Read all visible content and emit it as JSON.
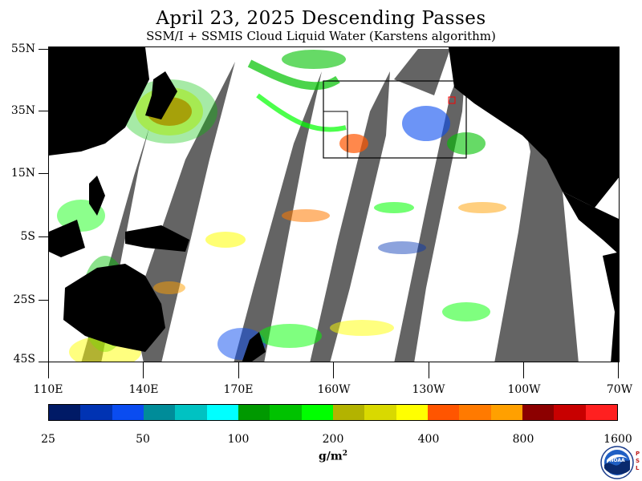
{
  "title": "April 23, 2025  Descending Passes",
  "subtitle": "SSM/I + SSMIS Cloud Liquid Water (Karstens algorithm)",
  "lat_labels": [
    "55N",
    "35N",
    "15N",
    "5S",
    "25S",
    "45S"
  ],
  "lon_labels": [
    "110E",
    "140E",
    "170E",
    "160W",
    "130W",
    "100W",
    "70W"
  ],
  "colorbar": {
    "unit": "g/m",
    "unit_sup": "2",
    "labels": [
      "25",
      "50",
      "100",
      "200",
      "400",
      "800",
      "1600"
    ],
    "colors": [
      "#001a66",
      "#0033b3",
      "#0a4cf0",
      "#008c99",
      "#00c2c2",
      "#00ffff",
      "#009900",
      "#00c200",
      "#00ff00",
      "#b3b300",
      "#d9d900",
      "#ffff00",
      "#ff5500",
      "#ff7a00",
      "#ffa000",
      "#8c0000",
      "#c80000",
      "#ff2020"
    ]
  },
  "logo": {
    "name": "NOAA",
    "side": "PSL"
  },
  "colors": {
    "land": "#000000",
    "no_data_gap": "#646464",
    "clear": "#ffffff"
  }
}
